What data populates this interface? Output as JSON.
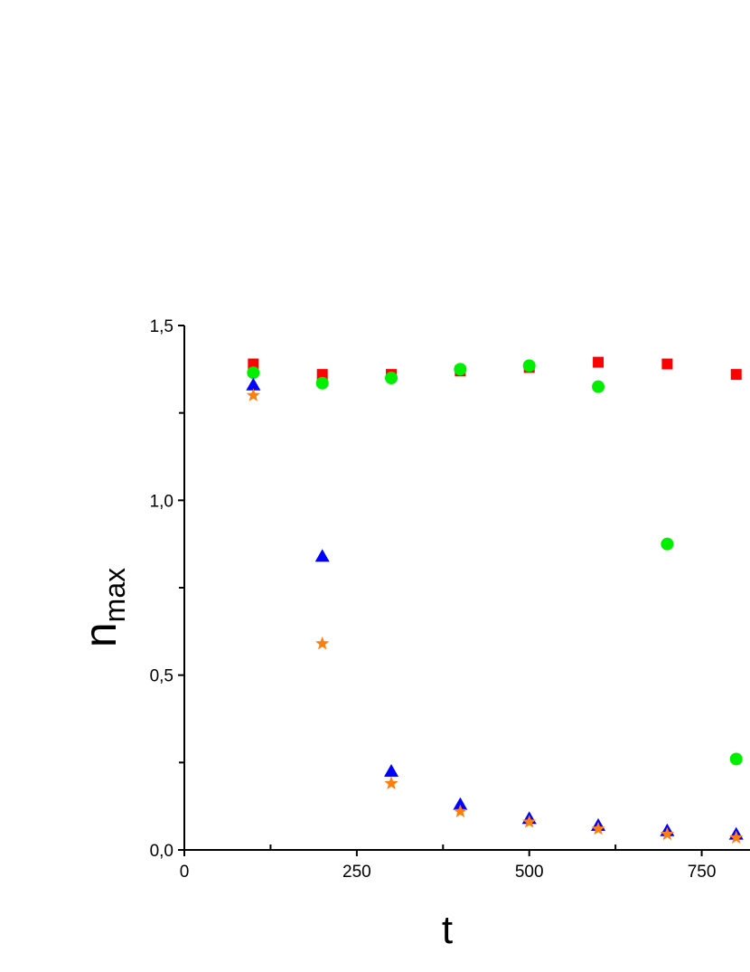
{
  "chart_data": {
    "type": "scatter",
    "xlabel": "t",
    "ylabel_main": "n",
    "ylabel_sub": "max",
    "xlim": [
      0,
      820
    ],
    "ylim": [
      0,
      1.5
    ],
    "xticks": [
      0,
      250,
      500,
      750
    ],
    "xtick_labels": [
      "0",
      "250",
      "500",
      "750"
    ],
    "yticks": [
      0,
      0.5,
      1.0,
      1.5
    ],
    "ytick_labels": [
      "0,0",
      "0,5",
      "1,0",
      "1,5"
    ],
    "grid": false,
    "legend": "none",
    "series": [
      {
        "marker": "square",
        "color": "#ff0000",
        "x": [
          100,
          200,
          300,
          400,
          500,
          600,
          700,
          800
        ],
        "y": [
          1.39,
          1.36,
          1.36,
          1.37,
          1.38,
          1.395,
          1.39,
          1.36
        ]
      },
      {
        "marker": "circle",
        "color": "#00ee00",
        "x": [
          100,
          200,
          300,
          400,
          500,
          600,
          700,
          800
        ],
        "y": [
          1.365,
          1.335,
          1.35,
          1.375,
          1.385,
          1.325,
          0.875,
          0.26
        ]
      },
      {
        "marker": "triangle",
        "color": "#0000ff",
        "x": [
          100,
          200,
          300,
          400,
          500,
          600,
          700,
          800
        ],
        "y": [
          1.33,
          0.84,
          0.225,
          0.13,
          0.09,
          0.07,
          0.055,
          0.045
        ]
      },
      {
        "marker": "star",
        "color": "#ff7f0e",
        "x": [
          100,
          200,
          300,
          400,
          500,
          600,
          700,
          800
        ],
        "y": [
          1.3,
          0.59,
          0.19,
          0.11,
          0.08,
          0.06,
          0.045,
          0.035
        ]
      }
    ]
  }
}
